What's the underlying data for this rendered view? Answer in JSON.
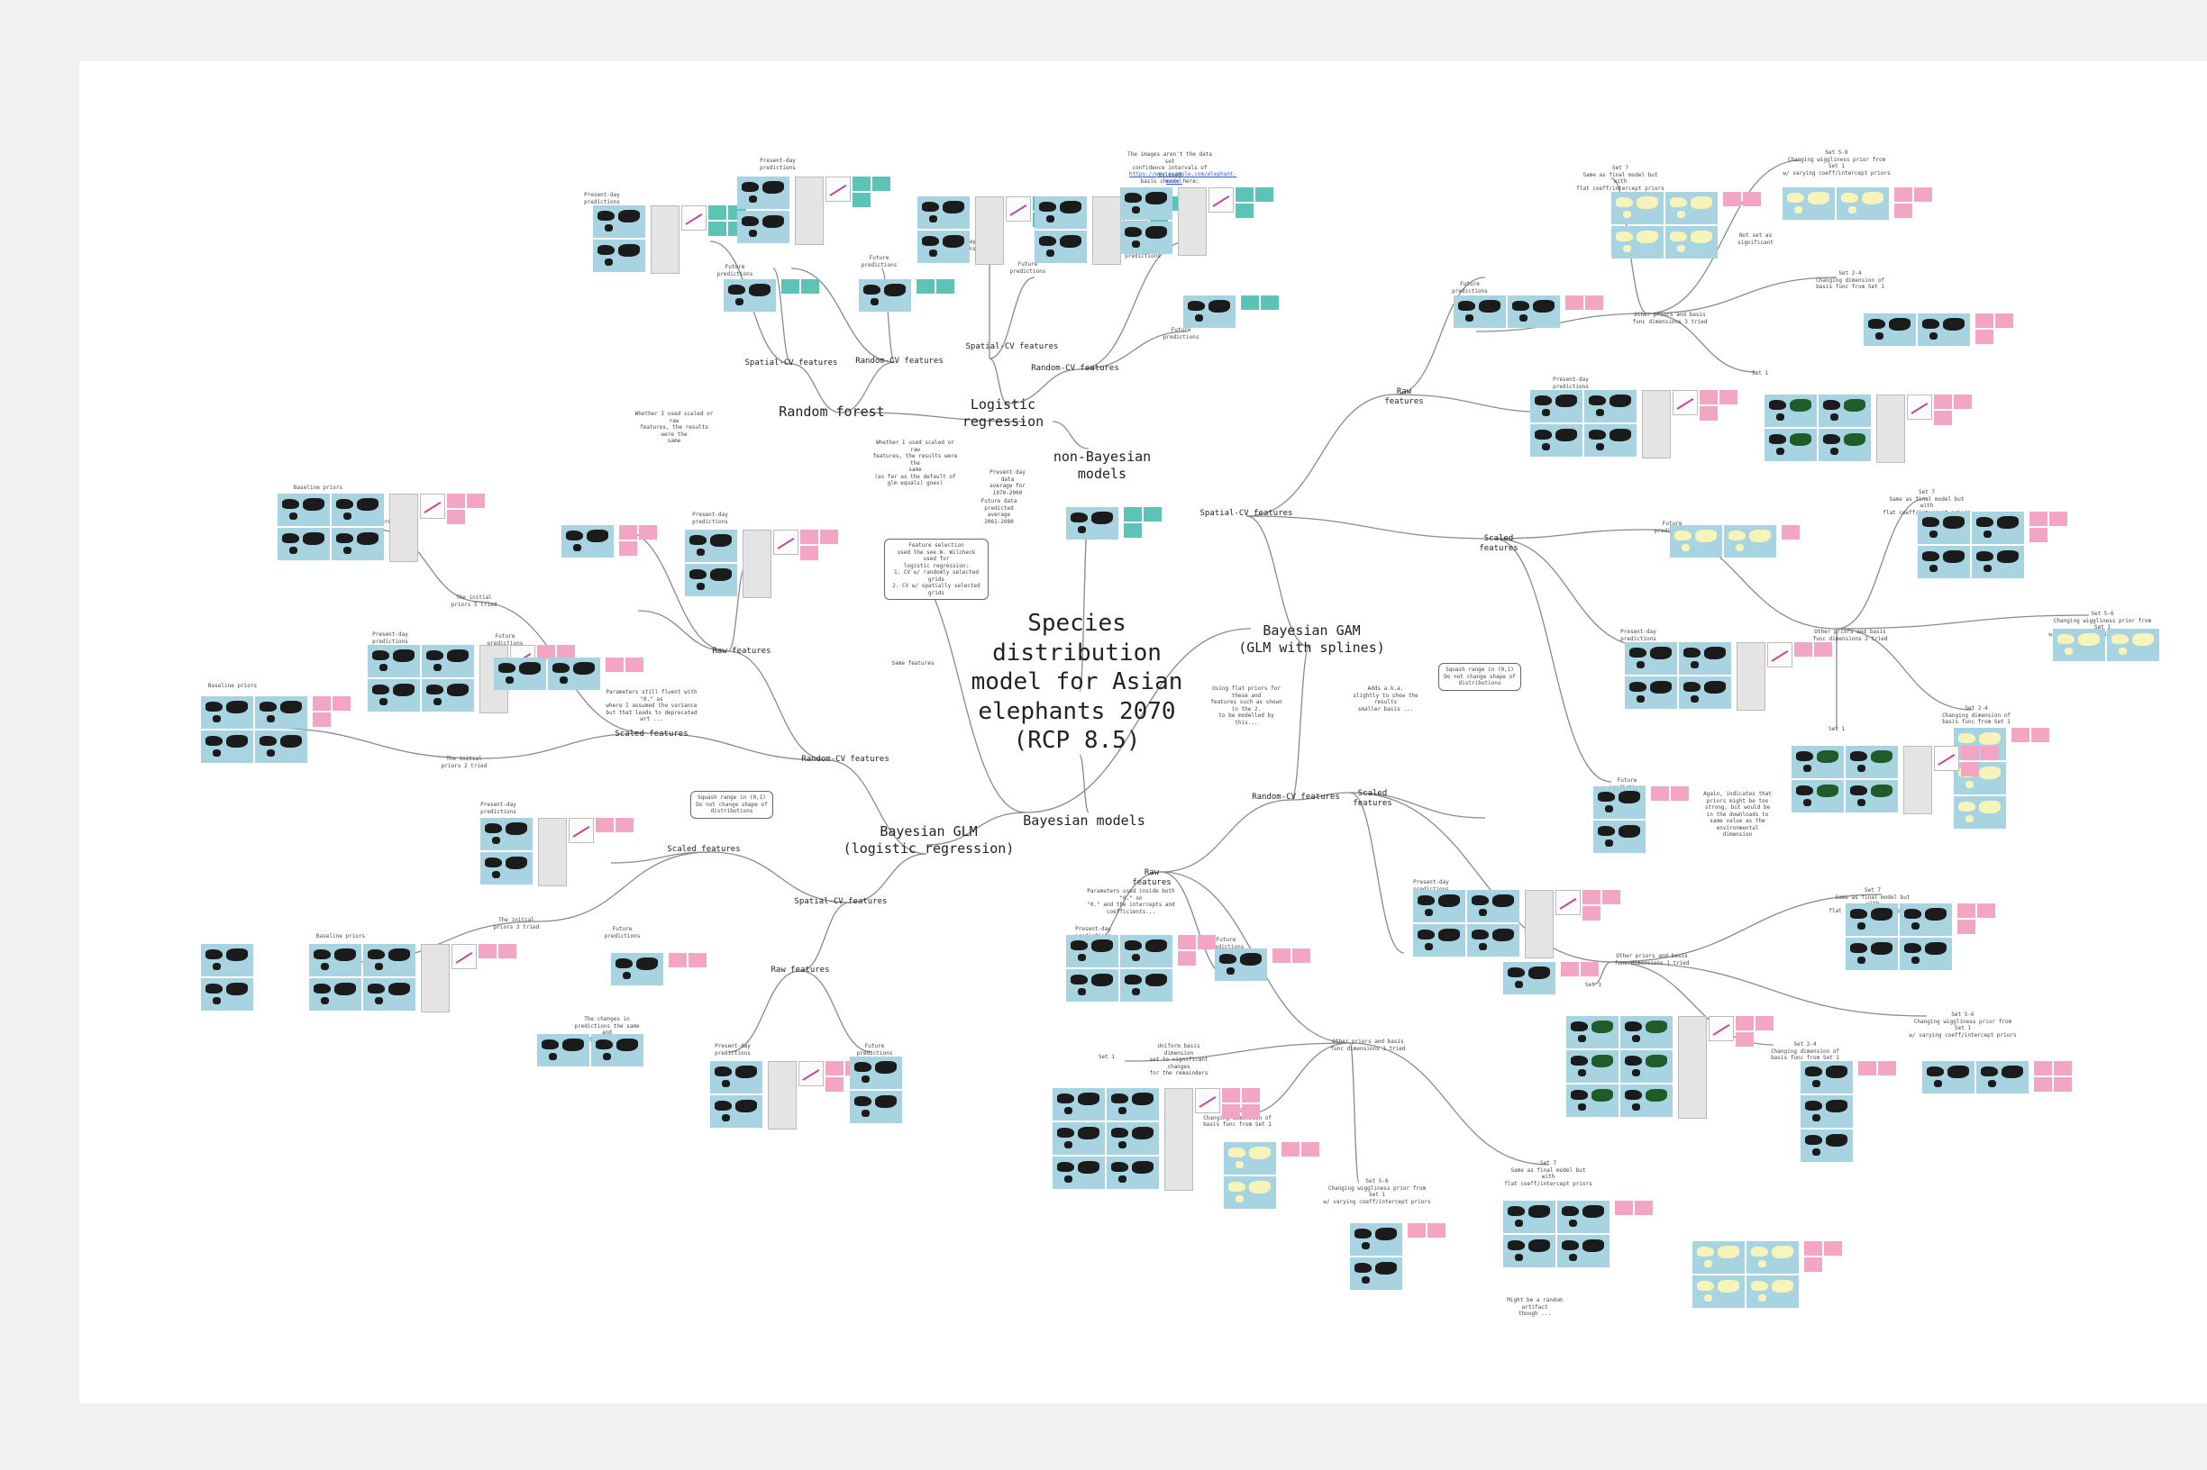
{
  "central": "Species\ndistribution\nmodel for Asian\nelephants 2070\n(RCP 8.5)",
  "nonbayes": "non-Bayesian\nmodels",
  "bayes": "Bayesian models",
  "lr": "Logistic regression",
  "rf": "Random forest",
  "glm": "Bayesian GLM\n(logistic regression)",
  "gam": "Bayesian GAM\n(GLM with splines)",
  "feature_selection": "Feature selection\nused the see.W. Wilcheck used for\nlogistic regression:\n1. CV w/ randomly selected grids\n2. CV w/ spatially selected grids",
  "same_features": "Same features",
  "spatial_cv": "Spatial-CV features",
  "random_cv": "Random-CV features",
  "raw": "Raw features",
  "scaled": "Scaled features",
  "present_day": "Present-day\npredictions",
  "future": "Future\npredictions",
  "baseline": "Baseline priors",
  "initial5": "The initial\npriors 5 tried",
  "initial2": "The initial\npriors 2 tried",
  "initial3": "The initial\npriors 3 tried",
  "squash": "Squash range in (0,1)\nDo not change shape of\ndistributions",
  "other_priors_3": "Other priors and basis\nfunc dimensions 3 tried",
  "other_priors_2": "Other priors and basis\nfunc dimensions 2 tried",
  "other_priors_1": "Other priors and basis\nfunc dimensions 1 tried",
  "set1": "Set 1",
  "set24": "Set 2-4\nChanging dimension of\nbasis func from Set 1",
  "set56": "Set 5-6\nChanging wiggliness prior from Set 1\nw/ varying coeff/intercept priors",
  "set7": "Set 7\nSame as final model but with\nflat coeff/intercept priors",
  "rf_note": "Whether I used scaled or raw\nfeatures, the results were the\nsame",
  "lr_note": "Whether I used scaled or raw\nfeatures, the results were the\nsame\n(as far as the default of\nglm equals) goes)",
  "maps_note": "The images aren't the data set\nconfidence intervals of Sclosed\nbasis choose here:",
  "link": "https://www.example.com/elephant-model",
  "present_avg": "Present day data\naverage for\n1970-2000",
  "future_avg": "Future data\npredicted average\n2061-2080",
  "glm_note": "Parameters still fluent with \"0.\" as\nwhere I assumed the variance\nbut that leads to deprecated wrt ...",
  "gam_note1": "Using flat priors for these and\nfeatures such as shown in the 2.\nto be modelled by this...",
  "gam_note2": "Adds a.k.a.\nslightly to show the results\nsmaller basis ...",
  "changes_note": "The changes in\npredictions the same and\nin these features",
  "squash_gam": "Squash range in (0,1)\nDo not change shape of\ndistributions",
  "gam_raw_note": "Parameters used inside both \"0.\" on\n\"0.\" and the intercepts and\ncoefficients...",
  "zero_note": "Might be a random artifact\nthough ...",
  "set1_note": "Uniform basis dimension\nset to significant changes\nfor the remainders",
  "not_significant": "Not set as significant",
  "again_note": "Again, indicates that\npriors might be too\nstrong, but would be\nin the downloads to\nsame value as the\nenvironmental dimension"
}
